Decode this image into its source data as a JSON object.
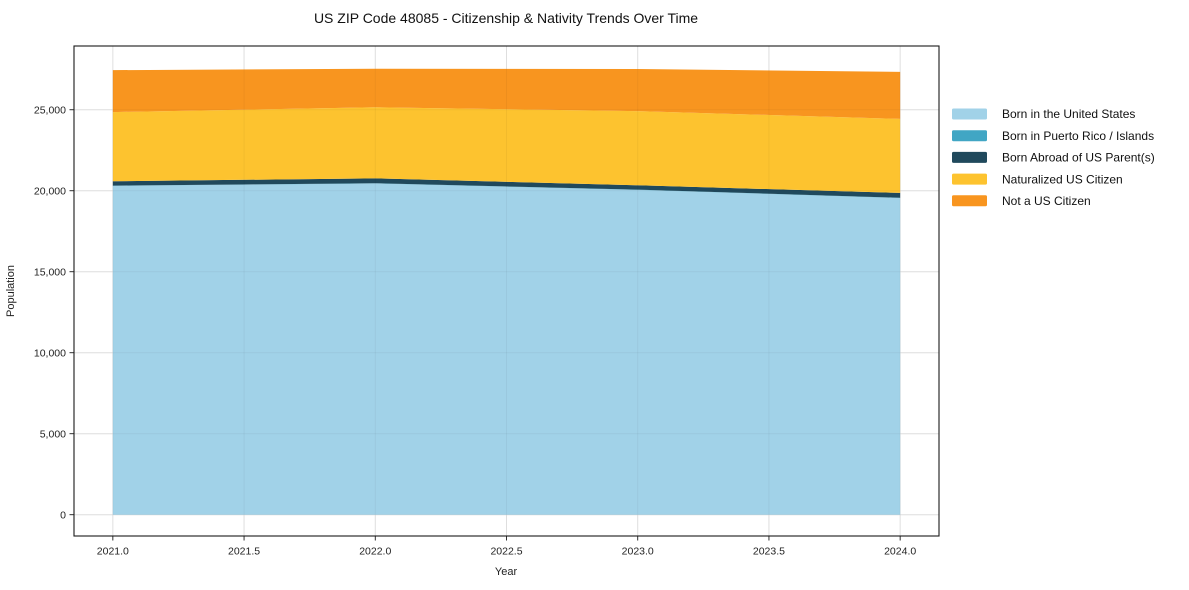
{
  "chart_data": {
    "type": "area",
    "stacked": true,
    "title": "US ZIP Code 48085 - Citizenship & Nativity Trends Over Time",
    "xlabel": "Year",
    "ylabel": "Population",
    "x": [
      2021,
      2022,
      2023,
      2024
    ],
    "series": [
      {
        "name": "Born in the United States",
        "color": "#A1D2E8",
        "values": [
          20300,
          20450,
          20050,
          19550
        ]
      },
      {
        "name": "Born in Puerto Rico / Islands",
        "color": "#41A6C4",
        "values": [
          15,
          15,
          15,
          15
        ]
      },
      {
        "name": "Born Abroad of US Parent(s)",
        "color": "#20495C",
        "values": [
          270,
          300,
          270,
          300
        ]
      },
      {
        "name": "Naturalized US Citizen",
        "color": "#FDC32F",
        "values": [
          4270,
          4390,
          4580,
          4570
        ]
      },
      {
        "name": "Not a US Citizen",
        "color": "#F8951F",
        "values": [
          2590,
          2375,
          2600,
          2900
        ]
      }
    ],
    "stack_totals": [
      27445,
      27530,
      27515,
      27335
    ],
    "x_ticks": {
      "values": [
        2021.0,
        2021.5,
        2022.0,
        2022.5,
        2023.0,
        2023.5,
        2024.0
      ],
      "labels": [
        "2021.0",
        "2021.5",
        "2022.0",
        "2022.5",
        "2023.0",
        "2023.5",
        "2024.0"
      ]
    },
    "y_ticks": {
      "values": [
        0,
        5000,
        10000,
        15000,
        20000,
        25000
      ],
      "labels": [
        "0",
        "5,000",
        "10,000",
        "15,000",
        "20,000",
        "25,000"
      ]
    },
    "xlim": [
      2020.852,
      2024.148
    ],
    "ylim": [
      -1315,
      28935
    ],
    "grid": true,
    "legend_position": "right",
    "colors": {
      "grid": "#e8e8e8",
      "frame": "#1a1a1a",
      "background": "#ffffff"
    }
  }
}
